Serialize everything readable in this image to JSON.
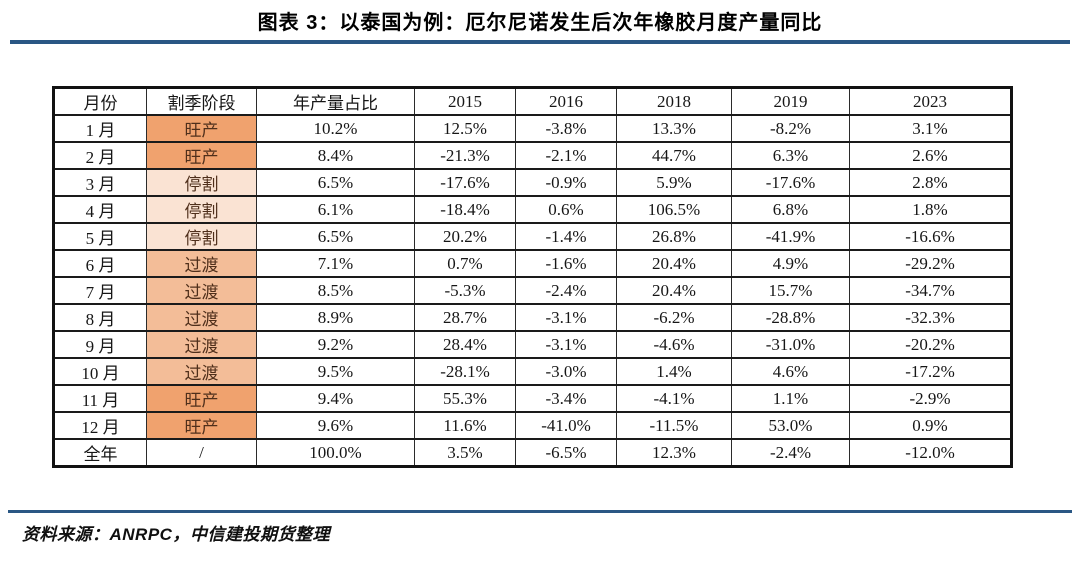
{
  "title": "图表 3：以泰国为例：厄尔尼诺发生后次年橡胶月度产量同比",
  "source_note": "资料来源：ANRPC，中信建投期货整理",
  "colors": {
    "accent_rule": "#2A5784",
    "stage_peak": "#F0A26E",
    "stage_stop": "#FAE3D3",
    "stage_trans": "#F3BD98",
    "stage_text": "#4F2F1B"
  },
  "chart_data": {
    "type": "table",
    "title": "图表 3：以泰国为例：厄尔尼诺发生后次年橡胶月度产量同比",
    "columns": [
      "月份",
      "割季阶段",
      "年产量占比",
      "2015",
      "2016",
      "2018",
      "2019",
      "2023"
    ],
    "rows": [
      {
        "month": "1 月",
        "stage": "旺产",
        "stage_key": "peak",
        "share": "10.2%",
        "values": [
          "12.5%",
          "-3.8%",
          "13.3%",
          "-8.2%",
          "3.1%"
        ]
      },
      {
        "month": "2 月",
        "stage": "旺产",
        "stage_key": "peak",
        "share": "8.4%",
        "values": [
          "-21.3%",
          "-2.1%",
          "44.7%",
          "6.3%",
          "2.6%"
        ]
      },
      {
        "month": "3 月",
        "stage": "停割",
        "stage_key": "stop",
        "share": "6.5%",
        "values": [
          "-17.6%",
          "-0.9%",
          "5.9%",
          "-17.6%",
          "2.8%"
        ]
      },
      {
        "month": "4 月",
        "stage": "停割",
        "stage_key": "stop",
        "share": "6.1%",
        "values": [
          "-18.4%",
          "0.6%",
          "106.5%",
          "6.8%",
          "1.8%"
        ]
      },
      {
        "month": "5 月",
        "stage": "停割",
        "stage_key": "stop",
        "share": "6.5%",
        "values": [
          "20.2%",
          "-1.4%",
          "26.8%",
          "-41.9%",
          "-16.6%"
        ]
      },
      {
        "month": "6 月",
        "stage": "过渡",
        "stage_key": "trans",
        "share": "7.1%",
        "values": [
          "0.7%",
          "-1.6%",
          "20.4%",
          "4.9%",
          "-29.2%"
        ]
      },
      {
        "month": "7 月",
        "stage": "过渡",
        "stage_key": "trans",
        "share": "8.5%",
        "values": [
          "-5.3%",
          "-2.4%",
          "20.4%",
          "15.7%",
          "-34.7%"
        ]
      },
      {
        "month": "8 月",
        "stage": "过渡",
        "stage_key": "trans",
        "share": "8.9%",
        "values": [
          "28.7%",
          "-3.1%",
          "-6.2%",
          "-28.8%",
          "-32.3%"
        ]
      },
      {
        "month": "9 月",
        "stage": "过渡",
        "stage_key": "trans",
        "share": "9.2%",
        "values": [
          "28.4%",
          "-3.1%",
          "-4.6%",
          "-31.0%",
          "-20.2%"
        ]
      },
      {
        "month": "10 月",
        "stage": "过渡",
        "stage_key": "trans",
        "share": "9.5%",
        "values": [
          "-28.1%",
          "-3.0%",
          "1.4%",
          "4.6%",
          "-17.2%"
        ]
      },
      {
        "month": "11 月",
        "stage": "旺产",
        "stage_key": "peak",
        "share": "9.4%",
        "values": [
          "55.3%",
          "-3.4%",
          "-4.1%",
          "1.1%",
          "-2.9%"
        ]
      },
      {
        "month": "12 月",
        "stage": "旺产",
        "stage_key": "peak",
        "share": "9.6%",
        "values": [
          "11.6%",
          "-41.0%",
          "-11.5%",
          "53.0%",
          "0.9%"
        ]
      },
      {
        "month": "全年",
        "stage": "/",
        "stage_key": "none",
        "share": "100.0%",
        "values": [
          "3.5%",
          "-6.5%",
          "12.3%",
          "-2.4%",
          "-12.0%"
        ]
      }
    ]
  }
}
